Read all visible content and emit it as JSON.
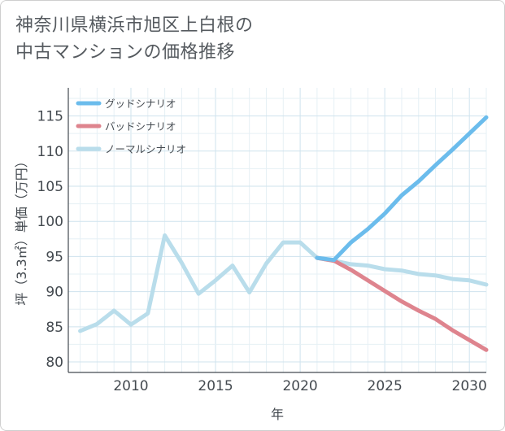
{
  "title_lines": [
    "神奈川県横浜市旭区上白根の",
    "中古マンションの価格推移"
  ],
  "chart_data": {
    "type": "line",
    "title": "神奈川県横浜市旭区上白根の中古マンションの価格推移",
    "xlabel": "年",
    "ylabel": "坪（3.3㎡）単価（万円）",
    "xlim": [
      2006.3,
      2031
    ],
    "ylim": [
      78.5,
      119
    ],
    "x_ticks": [
      2010,
      2015,
      2020,
      2025,
      2030
    ],
    "y_ticks": [
      80,
      85,
      90,
      95,
      100,
      105,
      110,
      115
    ],
    "legend_position": "top-left",
    "series": [
      {
        "name": "グッドシナリオ",
        "color": "#6bbcec",
        "width": 5,
        "x": [
          2021,
          2022,
          2023,
          2024,
          2025,
          2026,
          2027,
          2028,
          2029,
          2030,
          2031
        ],
        "values": [
          94.8,
          94.5,
          97.0,
          98.9,
          101.1,
          103.7,
          105.7,
          108.0,
          110.2,
          112.5,
          114.8
        ]
      },
      {
        "name": "バッドシナリオ",
        "color": "#de848e",
        "width": 5,
        "x": [
          2021,
          2022,
          2023,
          2024,
          2025,
          2026,
          2027,
          2028,
          2029,
          2030,
          2031
        ],
        "values": [
          94.8,
          94.4,
          93.1,
          91.6,
          90.1,
          88.6,
          87.3,
          86.1,
          84.5,
          83.1,
          81.7
        ]
      },
      {
        "name": "ノーマルシナリオ",
        "color": "#b9ddeb",
        "width": 5,
        "x": [
          2007,
          2008,
          2009,
          2010,
          2011,
          2012,
          2013,
          2014,
          2015,
          2016,
          2017,
          2018,
          2019,
          2020,
          2021,
          2022,
          2023,
          2024,
          2025,
          2026,
          2027,
          2028,
          2029,
          2030,
          2031
        ],
        "values": [
          84.4,
          85.4,
          87.3,
          85.3,
          86.9,
          98.0,
          94.1,
          89.7,
          91.6,
          93.7,
          89.9,
          94.0,
          97.0,
          97.0,
          94.8,
          94.4,
          93.9,
          93.7,
          93.2,
          93.0,
          92.5,
          92.3,
          91.8,
          91.6,
          91.0
        ]
      }
    ]
  }
}
